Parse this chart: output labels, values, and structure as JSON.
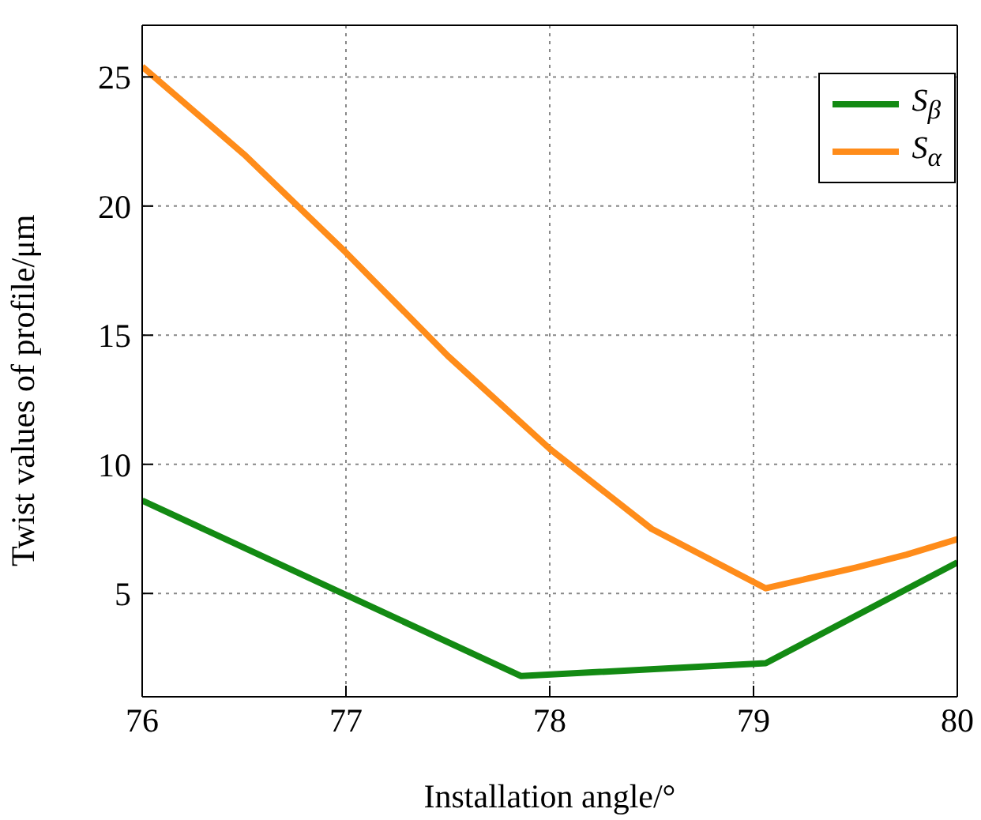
{
  "chart_data": {
    "type": "line",
    "xlabel": "Installation angle/°",
    "ylabel": "Twist values of profile/μm",
    "xlim": [
      76,
      80
    ],
    "xticks": [
      76,
      77,
      78,
      79,
      80
    ],
    "ylim": [
      1,
      27
    ],
    "yticks": [
      5,
      10,
      15,
      20,
      25
    ],
    "grid": true,
    "legend": "top right",
    "line_style": "solid",
    "marker": "none",
    "series": [
      {
        "name": "S$_{β}$",
        "color": "#138a13",
        "x": [
          76,
          77.86,
          79.06,
          80
        ],
        "values": [
          8.6,
          1.8,
          2.3,
          6.2
        ]
      },
      {
        "name": "S$_{α}$",
        "color": "#ff8c1a",
        "x": [
          76,
          76.5,
          77,
          77.5,
          78,
          78.5,
          79.06,
          79.5,
          79.75,
          80
        ],
        "values": [
          25.4,
          22,
          18.2,
          14.2,
          10.6,
          7.5,
          5.2,
          6,
          6.5,
          7.1
        ]
      }
    ]
  }
}
